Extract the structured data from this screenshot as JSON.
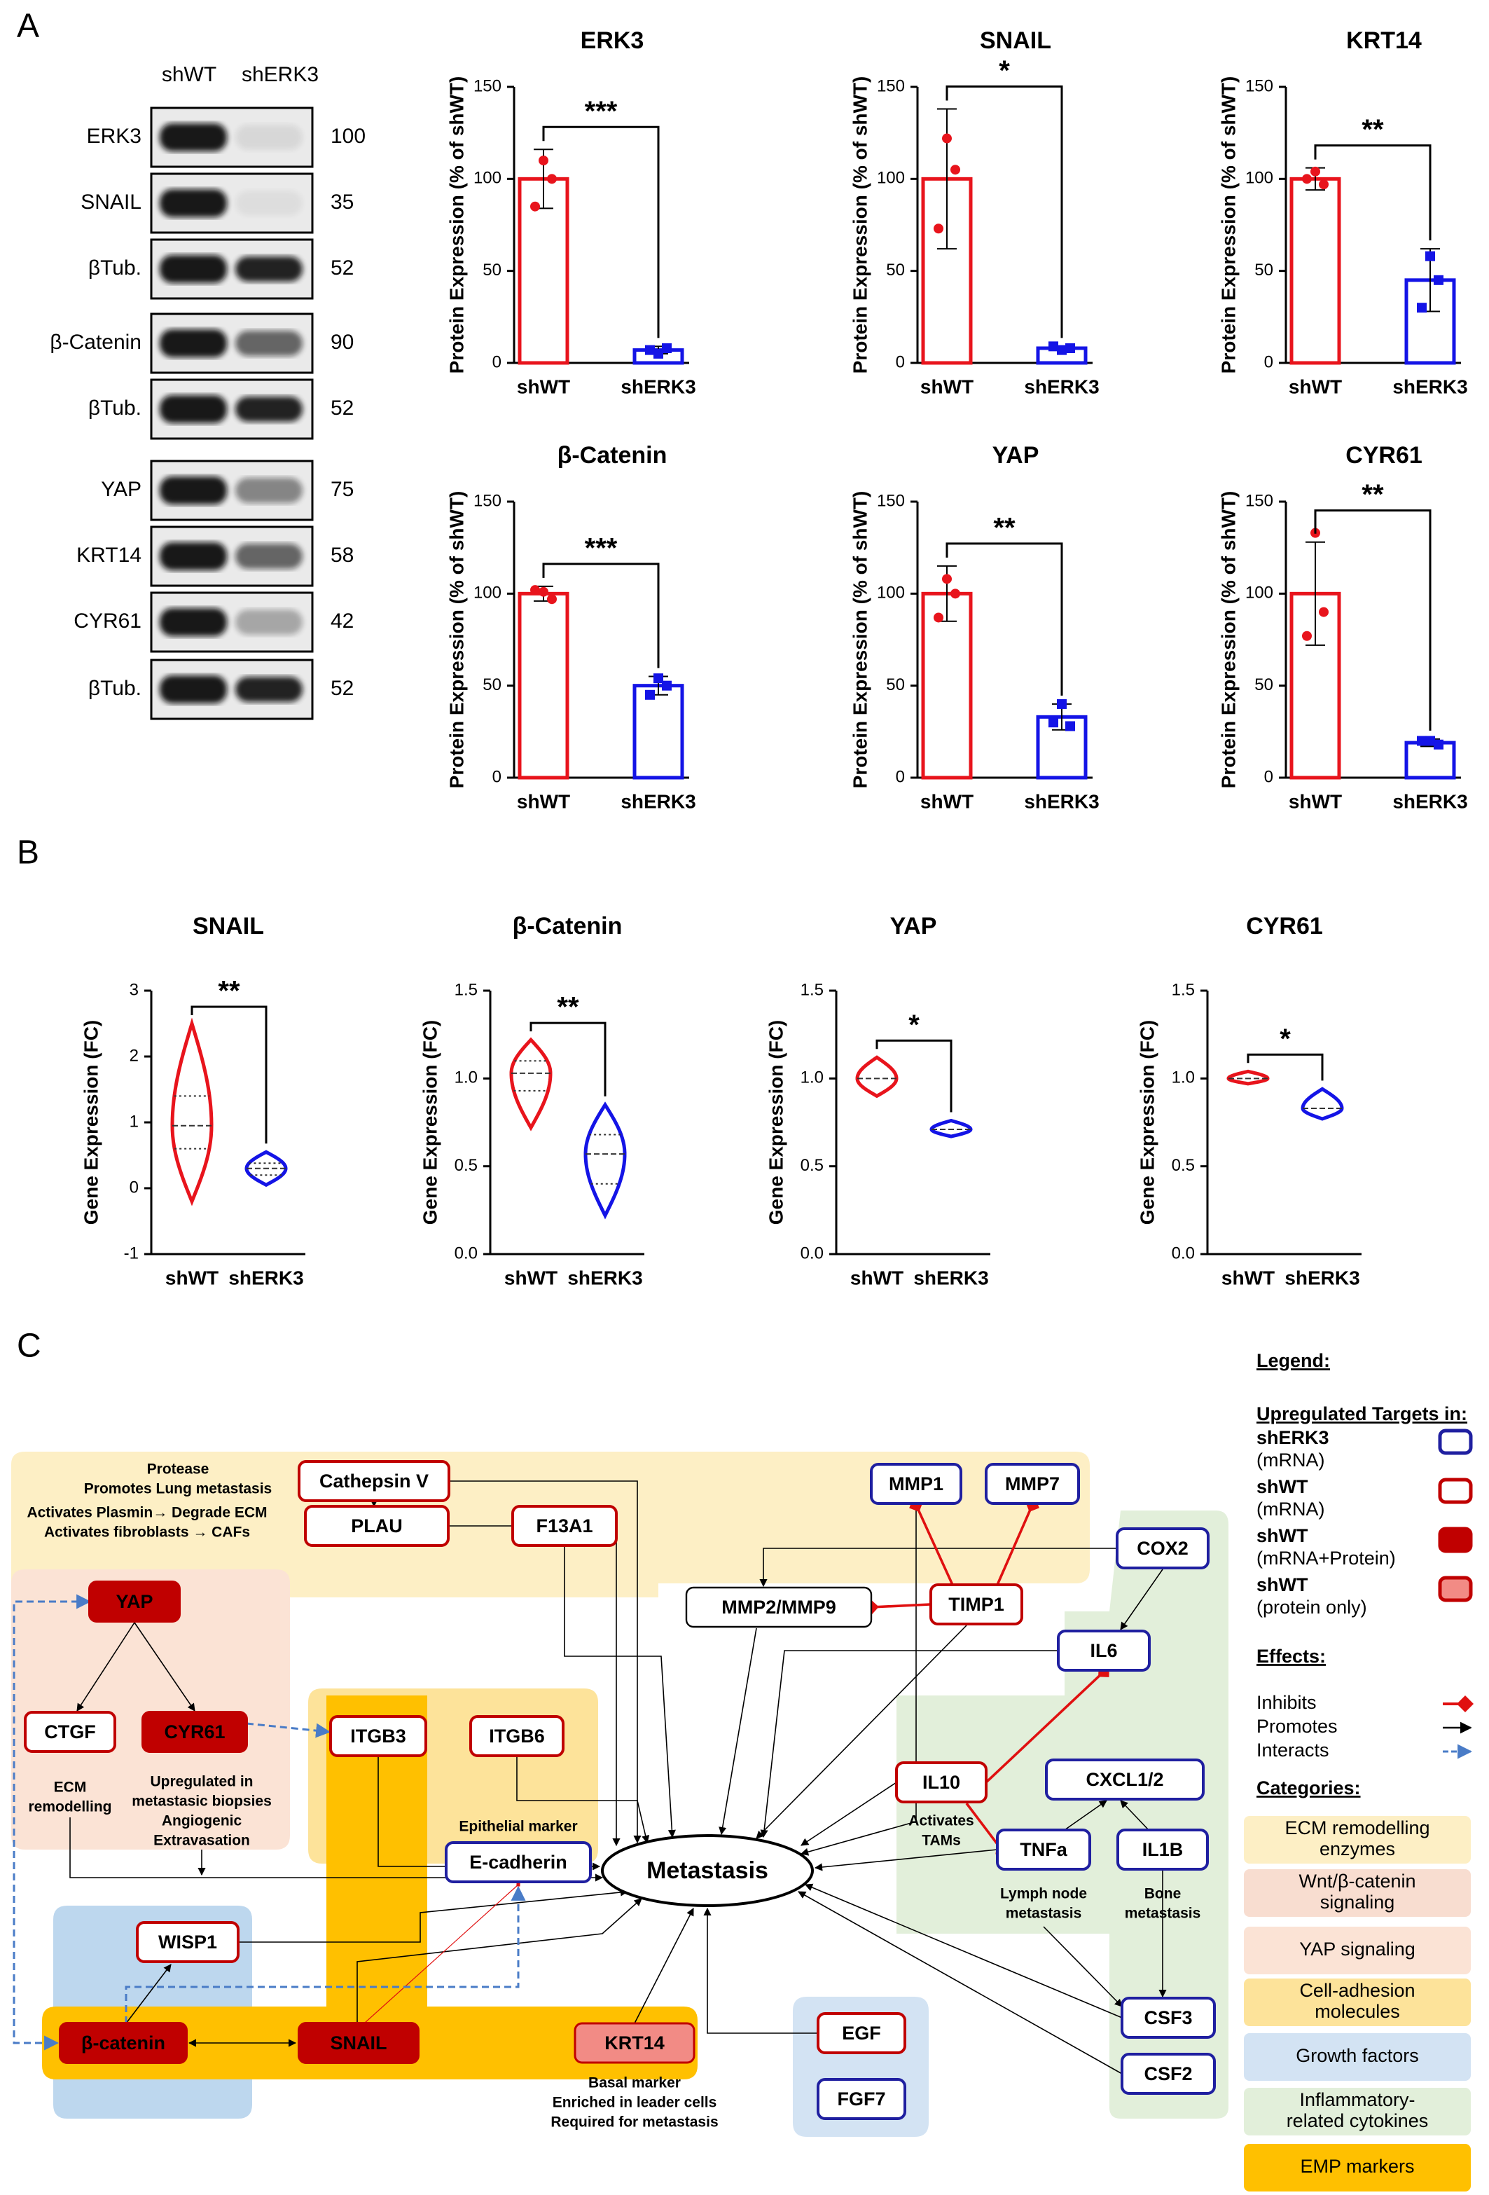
{
  "panel_labels": [
    "A",
    "B",
    "C"
  ],
  "blot": {
    "lanes": [
      "shWT",
      "shERK3"
    ],
    "rows": [
      {
        "label": "ERK3",
        "value": 100
      },
      {
        "label": "SNAIL",
        "value": 35
      },
      {
        "label": "βTub.",
        "value": 52
      },
      {
        "label": "β-Catenin",
        "value": 90
      },
      {
        "label": "βTub.",
        "value": 52
      },
      {
        "label": "YAP",
        "value": 75
      },
      {
        "label": "KRT14",
        "value": 58
      },
      {
        "label": "CYR61",
        "value": 42
      },
      {
        "label": "βTub.",
        "value": 52
      }
    ]
  },
  "chart_data": [
    {
      "type": "bar",
      "title": "ERK3",
      "ylabel": "Protein Expression (% of shWT)",
      "categories": [
        "shWT",
        "shERK3"
      ],
      "colors": [
        "#e8141c",
        "#1414e6"
      ],
      "values": [
        100,
        7
      ],
      "errors": [
        16,
        2
      ],
      "points": [
        [
          110,
          100,
          85
        ],
        [
          5,
          8,
          7
        ]
      ],
      "ylim": [
        0,
        150
      ],
      "yticks": [
        0,
        50,
        100,
        150
      ],
      "significance": "***"
    },
    {
      "type": "bar",
      "title": "SNAIL",
      "ylabel": "Protein Expression (% of shWT)",
      "categories": [
        "shWT",
        "shERK3"
      ],
      "colors": [
        "#e8141c",
        "#1414e6"
      ],
      "values": [
        100,
        8
      ],
      "errors": [
        38,
        1
      ],
      "points": [
        [
          122,
          105,
          73
        ],
        [
          7,
          8,
          9
        ]
      ],
      "ylim": [
        0,
        150
      ],
      "yticks": [
        0,
        50,
        100,
        150
      ],
      "significance": "*"
    },
    {
      "type": "bar",
      "title": "KRT14",
      "ylabel": "Protein Expression (% of shWT)",
      "categories": [
        "shWT",
        "shERK3"
      ],
      "colors": [
        "#e8141c",
        "#1414e6"
      ],
      "values": [
        100,
        45
      ],
      "errors": [
        6,
        17
      ],
      "points": [
        [
          104,
          97,
          100
        ],
        [
          58,
          45,
          30
        ]
      ],
      "ylim": [
        0,
        150
      ],
      "yticks": [
        0,
        50,
        100,
        150
      ],
      "significance": "**"
    },
    {
      "type": "bar",
      "title": "β-Catenin",
      "ylabel": "Protein Expression (% of shWT)",
      "categories": [
        "shWT",
        "shERK3"
      ],
      "colors": [
        "#e8141c",
        "#1414e6"
      ],
      "values": [
        100,
        50
      ],
      "errors": [
        4,
        5
      ],
      "points": [
        [
          101,
          97,
          102
        ],
        [
          54,
          50,
          45
        ]
      ],
      "ylim": [
        0,
        150
      ],
      "yticks": [
        0,
        50,
        100,
        150
      ],
      "significance": "***"
    },
    {
      "type": "bar",
      "title": "YAP",
      "ylabel": "Protein Expression (% of shWT)",
      "categories": [
        "shWT",
        "shERK3"
      ],
      "colors": [
        "#e8141c",
        "#1414e6"
      ],
      "values": [
        100,
        33
      ],
      "errors": [
        15,
        7
      ],
      "points": [
        [
          108,
          100,
          87
        ],
        [
          40,
          28,
          30
        ]
      ],
      "ylim": [
        0,
        150
      ],
      "yticks": [
        0,
        50,
        100,
        150
      ],
      "significance": "**"
    },
    {
      "type": "bar",
      "title": "CYR61",
      "ylabel": "Protein Expression (% of shWT)",
      "categories": [
        "shWT",
        "shERK3"
      ],
      "colors": [
        "#e8141c",
        "#1414e6"
      ],
      "values": [
        100,
        19
      ],
      "errors": [
        28,
        2
      ],
      "points": [
        [
          133,
          90,
          77
        ],
        [
          20,
          18,
          20
        ]
      ],
      "ylim": [
        0,
        150
      ],
      "yticks": [
        0,
        50,
        100,
        150
      ],
      "significance": "**"
    },
    {
      "type": "violin",
      "title": "SNAIL",
      "ylabel": "Gene Expression (FC)",
      "categories": [
        "shWT",
        "shERK3"
      ],
      "colors": [
        "#e8141c",
        "#1414e6"
      ],
      "groups": [
        {
          "min": -0.2,
          "q1": 0.6,
          "median": 0.95,
          "q3": 1.4,
          "max": 2.5
        },
        {
          "min": 0.05,
          "q1": 0.2,
          "median": 0.3,
          "q3": 0.38,
          "max": 0.55
        }
      ],
      "ylim": [
        -1,
        3
      ],
      "yticks": [
        -1,
        0,
        1,
        2,
        3
      ],
      "significance": "**"
    },
    {
      "type": "violin",
      "title": "β-Catenin",
      "ylabel": "Gene Expression (FC)",
      "categories": [
        "shWT",
        "shERK3"
      ],
      "colors": [
        "#e8141c",
        "#1414e6"
      ],
      "groups": [
        {
          "min": 0.72,
          "q1": 0.93,
          "median": 1.03,
          "q3": 1.1,
          "max": 1.22
        },
        {
          "min": 0.22,
          "q1": 0.4,
          "median": 0.57,
          "q3": 0.68,
          "max": 0.85
        }
      ],
      "ylim": [
        0,
        1.5
      ],
      "yticks": [
        {
          "value": 0,
          "label": "0.0"
        },
        0.5,
        {
          "value": 1,
          "label": "1.0"
        },
        1.5
      ],
      "significance": "**"
    },
    {
      "type": "violin",
      "title": "YAP",
      "ylabel": "Gene Expression (FC)",
      "categories": [
        "shWT",
        "shERK3"
      ],
      "colors": [
        "#e8141c",
        "#1414e6"
      ],
      "groups": [
        {
          "min": 0.9,
          "median": 1.0,
          "max": 1.12
        },
        {
          "min": 0.67,
          "median": 0.71,
          "max": 0.76
        }
      ],
      "ylim": [
        0,
        1.5
      ],
      "yticks": [
        {
          "value": 0,
          "label": "0.0"
        },
        0.5,
        {
          "value": 1,
          "label": "1.0"
        },
        1.5
      ],
      "significance": "*"
    },
    {
      "type": "violin",
      "title": "CYR61",
      "ylabel": "Gene Expression (FC)",
      "categories": [
        "shWT",
        "shERK3"
      ],
      "colors": [
        "#e8141c",
        "#1414e6"
      ],
      "groups": [
        {
          "min": 0.97,
          "median": 1.0,
          "max": 1.04
        },
        {
          "min": 0.77,
          "median": 0.83,
          "max": 0.94
        }
      ],
      "ylim": [
        0,
        1.5
      ],
      "yticks": [
        {
          "value": 0,
          "label": "0.0"
        },
        0.5,
        {
          "value": 1,
          "label": "1.0"
        },
        1.5
      ],
      "significance": "*"
    }
  ],
  "diagram": {
    "center": {
      "label": "Metastasis"
    },
    "nodes": [
      {
        "label": "Cathepsin V",
        "style": "red-outline"
      },
      {
        "label": "PLAU",
        "style": "red-outline"
      },
      {
        "label": "F13A1",
        "style": "red-outline"
      },
      {
        "label": "MMP1",
        "style": "blue-outline"
      },
      {
        "label": "MMP7",
        "style": "blue-outline"
      },
      {
        "label": "COX2",
        "style": "blue-outline"
      },
      {
        "label": "MMP2/MMP9",
        "style": "black-outline"
      },
      {
        "label": "TIMP1",
        "style": "red-outline"
      },
      {
        "label": "IL6",
        "style": "blue-outline"
      },
      {
        "label": "YAP",
        "style": "red-fill"
      },
      {
        "label": "CTGF",
        "style": "red-outline"
      },
      {
        "label": "CYR61",
        "style": "red-fill"
      },
      {
        "label": "ITGB3",
        "style": "red-outline"
      },
      {
        "label": "ITGB6",
        "style": "red-outline"
      },
      {
        "label": "E-cadherin",
        "style": "blue-outline"
      },
      {
        "label": "IL10",
        "style": "red-outline"
      },
      {
        "label": "CXCL1/2",
        "style": "blue-outline"
      },
      {
        "label": "TNFa",
        "style": "blue-outline"
      },
      {
        "label": "IL1B",
        "style": "blue-outline"
      },
      {
        "label": "WISP1",
        "style": "red-outline"
      },
      {
        "label": "β-catenin",
        "style": "red-fill"
      },
      {
        "label": "SNAIL",
        "style": "red-fill"
      },
      {
        "label": "KRT14",
        "style": "pink-fill"
      },
      {
        "label": "EGF",
        "style": "red-outline"
      },
      {
        "label": "FGF7",
        "style": "blue-outline"
      },
      {
        "label": "CSF3",
        "style": "blue-outline"
      },
      {
        "label": "CSF2",
        "style": "blue-outline"
      }
    ],
    "annotations": [
      {
        "lines": [
          "Protease",
          "Promotes Lung metastasis"
        ]
      },
      {
        "lines": [
          "Activates Plasmin→ Degrade ECM",
          "Activates fibroblasts → CAFs"
        ]
      },
      {
        "lines": [
          "ECM",
          "remodelling"
        ]
      },
      {
        "lines": [
          "Upregulated in",
          "metastasic biopsies",
          "Angiogenic",
          "Extravasation"
        ]
      },
      {
        "lines": [
          "Epithelial marker"
        ]
      },
      {
        "lines": [
          "Activates",
          "TAMs"
        ]
      },
      {
        "lines": [
          "Lymph node",
          "metastasis"
        ]
      },
      {
        "lines": [
          "Bone",
          "metastasis"
        ]
      },
      {
        "lines": [
          "Basal marker",
          "Enriched in leader cells",
          "Required for metastasis"
        ]
      }
    ],
    "legend": {
      "title": "Legend:",
      "targets_title": "Upregulated Targets in:",
      "targets": [
        {
          "name": "shERK3",
          "detail": "(mRNA)",
          "style": "blue-outline"
        },
        {
          "name": "shWT",
          "detail": "(mRNA)",
          "style": "red-outline"
        },
        {
          "name": "shWT",
          "detail": "(mRNA+Protein)",
          "style": "red-fill"
        },
        {
          "name": "shWT",
          "detail": "(protein only)",
          "style": "pink-fill"
        }
      ],
      "effects_title": "Effects:",
      "effects": [
        "Inhibits",
        "Promotes",
        "Interacts"
      ],
      "categories_title": "Categories:",
      "categories": [
        {
          "lines": [
            "ECM remodelling",
            "enzymes"
          ],
          "color": "#fdefc5"
        },
        {
          "lines": [
            "Wnt/β-catenin",
            "signaling"
          ],
          "color": "#f8ddd0"
        },
        {
          "lines": [
            "YAP signaling"
          ],
          "color": "#fbe3d5"
        },
        {
          "lines": [
            "Cell-adhesion",
            "molecules"
          ],
          "color": "#fde39a"
        },
        {
          "lines": [
            "Growth factors"
          ],
          "color": "#d3e3f3"
        },
        {
          "lines": [
            "Inflammatory-",
            "related cytokines"
          ],
          "color": "#e2efda"
        },
        {
          "lines": [
            "EMP markers"
          ],
          "color": "#ffc000"
        }
      ]
    }
  }
}
